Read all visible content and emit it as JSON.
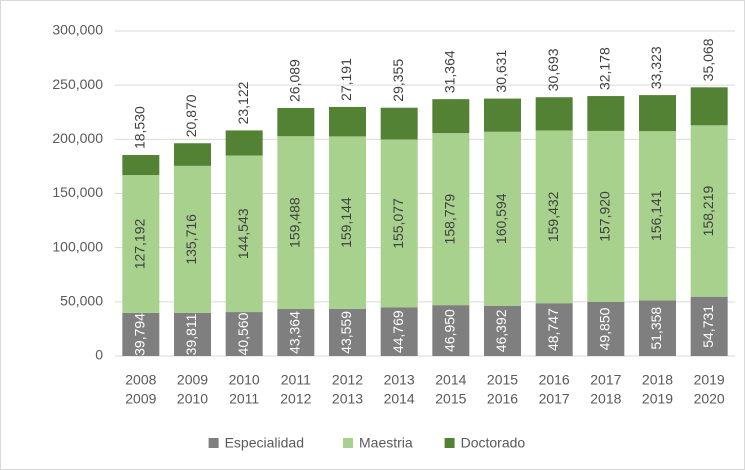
{
  "chart_data": {
    "type": "stacked_bar",
    "categories": [
      [
        "2008",
        "2009"
      ],
      [
        "2009",
        "2010"
      ],
      [
        "2010",
        "2011"
      ],
      [
        "2011",
        "2012"
      ],
      [
        "2012",
        "2013"
      ],
      [
        "2013",
        "2014"
      ],
      [
        "2014",
        "2015"
      ],
      [
        "2015",
        "2016"
      ],
      [
        "2016",
        "2017"
      ],
      [
        "2017",
        "2018"
      ],
      [
        "2018",
        "2019"
      ],
      [
        "2019",
        "2020"
      ]
    ],
    "series": [
      {
        "name": "Especialidad",
        "color": "#7f7f7f",
        "values": [
          39794,
          39811,
          40560,
          43364,
          43559,
          44769,
          46950,
          46392,
          48747,
          49850,
          51358,
          54731
        ],
        "value_labels": [
          "39,794",
          "39,811",
          "40,560",
          "43,364",
          "43,559",
          "44,769",
          "46,950",
          "46,392",
          "48,747",
          "49,850",
          "51,358",
          "54,731"
        ]
      },
      {
        "name": "Maestria",
        "color": "#a9d18e",
        "values": [
          127192,
          135716,
          144543,
          159488,
          159144,
          155077,
          158779,
          160594,
          159432,
          157920,
          156141,
          158219
        ],
        "value_labels": [
          "127,192",
          "135,716",
          "144,543",
          "159,488",
          "159,144",
          "155,077",
          "158,779",
          "160,594",
          "159,432",
          "157,920",
          "156,141",
          "158,219"
        ]
      },
      {
        "name": "Doctorado",
        "color": "#548235",
        "values": [
          18530,
          20870,
          23122,
          26089,
          27191,
          29355,
          31364,
          30631,
          30693,
          32178,
          33323,
          35068
        ],
        "value_labels": [
          "18,530",
          "20,870",
          "23,122",
          "26,089",
          "27,191",
          "29,355",
          "31,364",
          "30,631",
          "30,693",
          "32,178",
          "33,323",
          "35,068"
        ]
      }
    ],
    "ylim": [
      0,
      300000
    ],
    "yticks": [
      0,
      {
        "value": 50000,
        "label": "50,000"
      },
      {
        "value": 100000,
        "label": "100,000"
      },
      {
        "value": 150000,
        "label": "150,000"
      },
      {
        "value": 200000,
        "label": "200,000"
      },
      {
        "value": 250000,
        "label": "250,000"
      },
      {
        "value": 300000,
        "label": "300,000"
      }
    ],
    "grid": true,
    "legend": "bottom"
  }
}
